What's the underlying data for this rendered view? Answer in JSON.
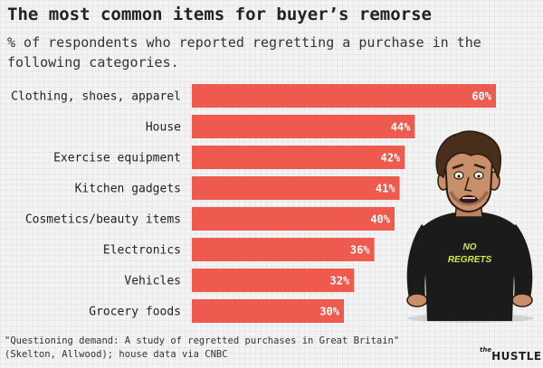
{
  "header": {
    "title": "The most common items for buyer’s remorse",
    "subtitle": "% of respondents who reported regretting a purchase in the following categories."
  },
  "chart_data": {
    "type": "bar",
    "orientation": "horizontal",
    "categories": [
      "Clothing, shoes, apparel",
      "House",
      "Exercise equipment",
      "Kitchen gadgets",
      "Cosmetics/beauty items",
      "Electronics",
      "Vehicles",
      "Grocery foods"
    ],
    "values": [
      60,
      44,
      42,
      41,
      40,
      36,
      32,
      30
    ],
    "value_labels": [
      "60%",
      "44%",
      "42%",
      "41%",
      "40%",
      "36%",
      "32%",
      "30%"
    ],
    "title": "The most common items for buyer’s remorse",
    "subtitle": "% of respondents who reported regretting a purchase in the following categories.",
    "xlim": [
      0,
      60
    ],
    "grid": false,
    "bar_color": "#ef5a4f"
  },
  "illustration": {
    "shirt_text": "NO REGRETS",
    "shirt_text_color": "#d4e84a"
  },
  "footer": {
    "source": "\"Questioning demand: A study of regretted purchases in Great Britain\" (Skelton, Allwood); house data via CNBC",
    "logo_small": "the",
    "logo_main": "HUSTLE"
  }
}
